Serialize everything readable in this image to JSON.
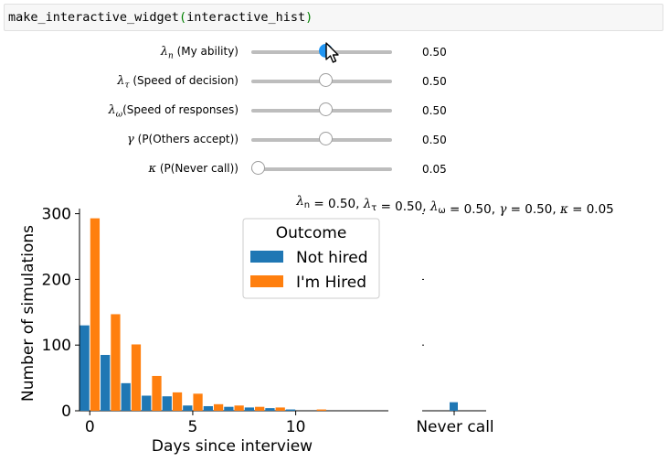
{
  "code_cell": {
    "function_name": "make_interactive_widget",
    "open_paren": "(",
    "argument": "interactive_hist",
    "close_paren": ")"
  },
  "sliders": [
    {
      "symbol": "λ",
      "sub": "n",
      "label": " (My ability)",
      "value": 0.5,
      "value_text": "0.50",
      "active": true
    },
    {
      "symbol": "λ",
      "sub": "τ",
      "label": " (Speed of decision)",
      "value": 0.5,
      "value_text": "0.50",
      "active": false
    },
    {
      "symbol": "λ",
      "sub": "ω",
      "label": "(Speed of responses)",
      "value": 0.5,
      "value_text": "0.50",
      "active": false
    },
    {
      "symbol": "γ",
      "sub": "",
      "label": " (P(Others accept))",
      "value": 0.5,
      "value_text": "0.50",
      "active": false
    },
    {
      "symbol": "κ",
      "sub": "",
      "label": " (P(Never call))",
      "value": 0.05,
      "value_text": "0.05",
      "active": false
    }
  ],
  "chart_data": {
    "type": "bar",
    "title": "λn = 0.50, λτ = 0.50, λω = 0.50, γ = 0.50, κ = 0.05",
    "xlabel": "Days since interview",
    "ylabel": "Number of simulations",
    "xlim": [
      -0.5,
      14.5
    ],
    "ylim": [
      0,
      305
    ],
    "xticks": [
      0,
      5,
      10
    ],
    "yticks": [
      0,
      100,
      200,
      300
    ],
    "bin_width": 1,
    "legend": {
      "title": "Outcome",
      "placement": "top-center"
    },
    "series": [
      {
        "name": "Not hired",
        "color": "#1f77b4",
        "x": [
          0,
          1,
          2,
          3,
          4,
          5,
          6,
          7,
          8,
          9,
          10
        ],
        "values": [
          130,
          85,
          42,
          23,
          22,
          8,
          7,
          6,
          5,
          4,
          2
        ]
      },
      {
        "name": "I'm Hired",
        "color": "#ff7f0e",
        "x": [
          0,
          1,
          2,
          3,
          4,
          5,
          6,
          7,
          8,
          9,
          11
        ],
        "values": [
          293,
          147,
          101,
          53,
          28,
          26,
          10,
          8,
          6,
          5,
          2
        ]
      }
    ],
    "never_call": {
      "label": "Never call",
      "value": 13,
      "color": "#1f77b4"
    }
  }
}
